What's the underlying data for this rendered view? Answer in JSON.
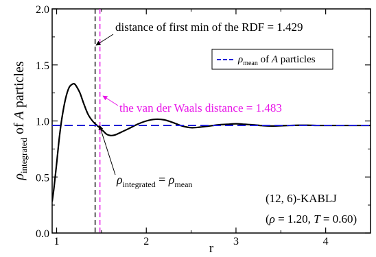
{
  "chart_data": {
    "type": "line",
    "xlabel": "r",
    "ylabel": {
      "rho": "ρ",
      "sub": "integrated",
      "text_before": " of ",
      "italic": "A",
      "text_after": " particles"
    },
    "xlim": [
      0.95,
      4.5
    ],
    "ylim": [
      0.0,
      2.0
    ],
    "x_ticks": [
      1,
      2,
      3,
      4
    ],
    "y_ticks": [
      0.0,
      0.5,
      1.0,
      1.5,
      2.0
    ],
    "x_tick_labels": [
      "1",
      "2",
      "3",
      "4"
    ],
    "y_tick_labels": [
      "0.0",
      "0.5",
      "1.0",
      "1.5",
      "2.0"
    ],
    "grid": false,
    "series": [
      {
        "color": "#000000",
        "style": "solid",
        "x": [
          0.95,
          0.97,
          1.0,
          1.03,
          1.06,
          1.1,
          1.14,
          1.18,
          1.2,
          1.22,
          1.26,
          1.3,
          1.35,
          1.4,
          1.45,
          1.48,
          1.52,
          1.56,
          1.6,
          1.65,
          1.72,
          1.8,
          1.9,
          2.0,
          2.1,
          2.2,
          2.3,
          2.4,
          2.5,
          2.6,
          2.7,
          2.8,
          2.9,
          3.0,
          3.1,
          3.2,
          3.3,
          3.4,
          3.5,
          3.6,
          3.7,
          3.8,
          3.9,
          4.0,
          4.2,
          4.5
        ],
        "y": [
          0.28,
          0.4,
          0.62,
          0.85,
          1.03,
          1.2,
          1.3,
          1.33,
          1.33,
          1.31,
          1.25,
          1.16,
          1.06,
          1.0,
          0.96,
          0.94,
          0.91,
          0.88,
          0.87,
          0.875,
          0.9,
          0.93,
          0.97,
          1.0,
          1.015,
          1.01,
          0.985,
          0.955,
          0.94,
          0.945,
          0.955,
          0.965,
          0.97,
          0.975,
          0.97,
          0.965,
          0.958,
          0.955,
          0.957,
          0.96,
          0.962,
          0.962,
          0.96,
          0.96,
          0.96,
          0.96
        ]
      },
      {
        "name": "ρmean of A particles",
        "color": "#1f1fd6",
        "style": "dashed",
        "x": [
          0.95,
          4.5
        ],
        "y": [
          0.96,
          0.96
        ]
      }
    ],
    "vlines": [
      {
        "x": 1.429,
        "color": "#000000",
        "style": "dashed"
      },
      {
        "x": 1.483,
        "color": "#e815e8",
        "style": "dashed"
      }
    ],
    "legend": {
      "placement": "top-right",
      "entry": {
        "rho": "ρ",
        "sub": "mean",
        "text_before": " of ",
        "italic": "A",
        "text_after": " particles"
      }
    },
    "annotations": {
      "first_min": "distance of first min of the RDF = 1.429",
      "vdw": "the van der Waals distance = 1.483",
      "equality": {
        "rho": "ρ",
        "sub_left": "integrated",
        "equals": " = ",
        "sub_right": "mean"
      },
      "system": "(12, 6)-KABLJ",
      "conditions": {
        "open": "(",
        "rho": "ρ",
        "rho_value": " = 1.20, ",
        "T": "T",
        "T_value": " = 0.60)"
      }
    }
  }
}
